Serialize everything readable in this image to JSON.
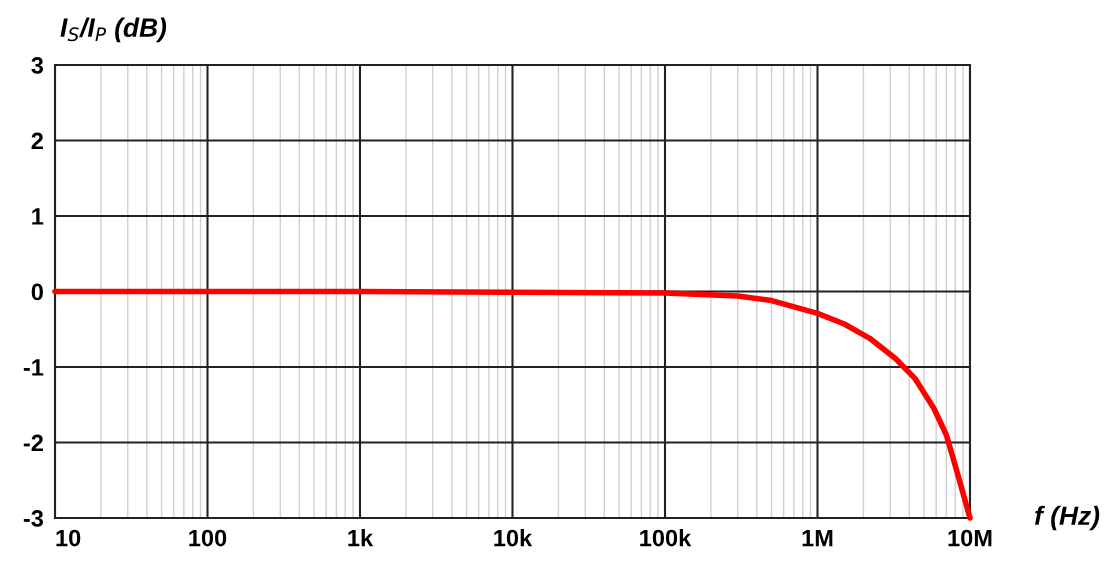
{
  "chart_data": {
    "type": "line",
    "ylabel": "I$_{S}$/I$_{P}$ (dB)",
    "xlabel": "f (Hz)",
    "log": "x",
    "grid": true,
    "marker": "none",
    "line_style": "solid",
    "xlim": [
      10,
      10000000
    ],
    "ylim": [
      -3,
      3
    ],
    "xticks": [
      10,
      100,
      {
        "value": 1000,
        "label": "1k"
      },
      {
        "value": 10000,
        "label": "10k"
      },
      {
        "value": 100000,
        "label": "100k"
      },
      {
        "value": 1000000,
        "label": "1M"
      },
      {
        "value": 10000000,
        "label": "10M"
      }
    ],
    "yticks": [
      -3,
      -2,
      -1,
      0,
      1,
      2,
      3
    ],
    "series": [
      {
        "color": "#ff0000",
        "x": [
          10,
          100,
          1000,
          10000,
          100000,
          300000,
          500000,
          1000000,
          1500000,
          2200000,
          3260000,
          4350000,
          5800000,
          7000000,
          8100000,
          10000000
        ],
        "values": [
          0,
          0,
          0,
          -0.01,
          -0.02,
          -0.06,
          -0.12,
          -0.29,
          -0.43,
          -0.62,
          -0.89,
          -1.15,
          -1.55,
          -1.9,
          -2.34,
          -3
        ]
      }
    ]
  }
}
